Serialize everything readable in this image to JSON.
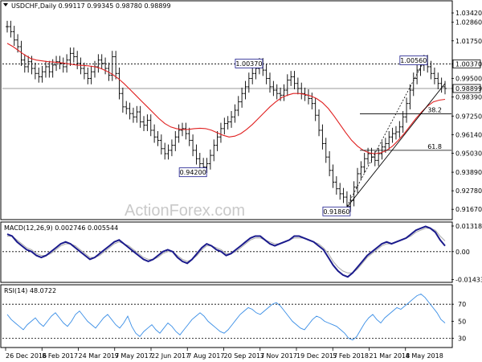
{
  "chart_data": [
    {
      "type": "line",
      "panel": "price",
      "title": "USDCHF,Daily  0.99117 0.99345 0.98780 0.98899",
      "ylim": [
        0.912,
        1.04
      ],
      "y_ticks": [
        1.0342,
        1.0286,
        1.0175,
        1.0037,
        0.995,
        0.98899,
        0.9839,
        0.9725,
        0.9614,
        0.9503,
        0.9389,
        0.9278,
        0.9167
      ],
      "highlight_ticks": [
        1.0037,
        0.98899
      ],
      "series": [
        {
          "kind": "ohlc-bars",
          "color": "#000000",
          "approx_closes": [
            1.026,
            1.023,
            1.018,
            1.014,
            1.006,
            1.002,
            1.005,
            1.001,
            0.998,
            0.996,
            0.999,
            1.002,
            0.999,
            1.003,
            1.005,
            1.004,
            1.002,
            1.006,
            1.01,
            1.008,
            1.004,
            1.001,
            0.998,
            0.995,
            0.999,
            1.002,
            1.006,
            1.004,
            1.001,
            0.997,
            1.008,
            0.998,
            0.986,
            0.978,
            0.977,
            0.974,
            0.972,
            0.975,
            0.969,
            0.967,
            0.97,
            0.964,
            0.96,
            0.958,
            0.953,
            0.95,
            0.952,
            0.955,
            0.96,
            0.964,
            0.965,
            0.962,
            0.958,
            0.952,
            0.947,
            0.944,
            0.942,
            0.944,
            0.949,
            0.955,
            0.96,
            0.965,
            0.968,
            0.969,
            0.972,
            0.976,
            0.981,
            0.986,
            0.99,
            0.995,
            0.998,
            1.001,
            1.0037,
            1.0,
            0.995,
            0.99,
            0.988,
            0.986,
            0.985,
            0.988,
            0.994,
            0.996,
            0.992,
            0.989,
            0.986,
            0.985,
            0.983,
            0.98,
            0.973,
            0.964,
            0.956,
            0.948,
            0.94,
            0.933,
            0.929,
            0.926,
            0.924,
            0.9186,
            0.922,
            0.93,
            0.938,
            0.942,
            0.947,
            0.95,
            0.948,
            0.946,
            0.95,
            0.954,
            0.956,
            0.96,
            0.962,
            0.963,
            0.966,
            0.972,
            0.98,
            0.988,
            0.995,
            1.0,
            1.003,
            1.0056,
            1.002,
            0.998,
            0.995,
            0.992,
            0.99,
            0.989
          ]
        },
        {
          "kind": "moving-average",
          "color": "#e02020",
          "approx_values": [
            1.016,
            1.014,
            1.0115,
            1.009,
            1.007,
            1.006,
            1.0055,
            1.005,
            1.0048,
            1.0045,
            1.004,
            1.0035,
            1.003,
            1.0028,
            1.0025,
            1.002,
            1.001,
            0.9995,
            0.9975,
            0.995,
            0.992,
            0.9885,
            0.985,
            0.9815,
            0.978,
            0.9745,
            0.971,
            0.968,
            0.966,
            0.965,
            0.9645,
            0.9645,
            0.965,
            0.9652,
            0.965,
            0.964,
            0.9625,
            0.961,
            0.96,
            0.9605,
            0.962,
            0.9645,
            0.9675,
            0.971,
            0.9745,
            0.978,
            0.981,
            0.9835,
            0.985,
            0.986,
            0.986,
            0.9855,
            0.9845,
            0.983,
            0.9805,
            0.977,
            0.9725,
            0.9675,
            0.9625,
            0.958,
            0.9545,
            0.952,
            0.9505,
            0.95,
            0.9505,
            0.952,
            0.9545,
            0.958,
            0.962,
            0.9665,
            0.971,
            0.975,
            0.9785,
            0.981,
            0.982,
            0.9825
          ]
        }
      ],
      "annotations": [
        {
          "text": "1.00370",
          "kind": "swing-high"
        },
        {
          "text": "0.94200",
          "kind": "swing-low"
        },
        {
          "text": "0.91860",
          "kind": "swing-low"
        },
        {
          "text": "1.00560",
          "kind": "swing-high"
        },
        {
          "text": "38.2",
          "kind": "fibonacci",
          "level": 0.9738
        },
        {
          "text": "61.8",
          "kind": "fibonacci",
          "level": 0.952
        }
      ],
      "reference_lines": [
        1.0037,
        0.98899
      ],
      "watermark": "ActionForex.com",
      "grid": false
    },
    {
      "type": "line",
      "panel": "macd",
      "title": "MACD(12,26,9) 0.002746 0.005544",
      "ylim": [
        -0.015,
        0.014
      ],
      "y_ticks": [
        0.013184,
        0.0,
        -0.014339
      ],
      "series": [
        {
          "kind": "macd",
          "color": "#1a1a8c",
          "approx_values": [
            0.009,
            0.008,
            0.005,
            0.003,
            0.001,
            0.0,
            -0.002,
            -0.003,
            -0.002,
            0.0,
            0.002,
            0.004,
            0.005,
            0.004,
            0.002,
            0.0,
            -0.002,
            -0.004,
            -0.003,
            -0.001,
            0.001,
            0.003,
            0.005,
            0.006,
            0.004,
            0.002,
            0.0,
            -0.002,
            -0.004,
            -0.005,
            -0.004,
            -0.002,
            0.0,
            0.001,
            0.0,
            -0.003,
            -0.005,
            -0.006,
            -0.004,
            -0.001,
            0.002,
            0.004,
            0.003,
            0.001,
            0.0,
            -0.002,
            -0.001,
            0.001,
            0.003,
            0.005,
            0.007,
            0.008,
            0.008,
            0.006,
            0.004,
            0.003,
            0.004,
            0.005,
            0.006,
            0.008,
            0.008,
            0.007,
            0.006,
            0.005,
            0.003,
            0.001,
            -0.003,
            -0.007,
            -0.01,
            -0.012,
            -0.013,
            -0.011,
            -0.008,
            -0.005,
            -0.002,
            0.0,
            0.002,
            0.004,
            0.005,
            0.004,
            0.005,
            0.006,
            0.007,
            0.009,
            0.011,
            0.012,
            0.013,
            0.012,
            0.01,
            0.006,
            0.003
          ]
        },
        {
          "kind": "signal",
          "color": "#aaaaaa",
          "approx_values": [
            0.008,
            0.008,
            0.006,
            0.004,
            0.002,
            0.001,
            -0.001,
            -0.002,
            -0.002,
            -0.001,
            0.001,
            0.003,
            0.004,
            0.004,
            0.003,
            0.001,
            -0.001,
            -0.003,
            -0.003,
            -0.002,
            0.0,
            0.002,
            0.004,
            0.005,
            0.004,
            0.003,
            0.001,
            -0.001,
            -0.003,
            -0.004,
            -0.004,
            -0.003,
            -0.001,
            0.0,
            0.0,
            -0.002,
            -0.004,
            -0.005,
            -0.004,
            -0.002,
            0.001,
            0.003,
            0.003,
            0.002,
            0.001,
            -0.001,
            -0.001,
            0.0,
            0.002,
            0.004,
            0.006,
            0.007,
            0.007,
            0.006,
            0.005,
            0.004,
            0.004,
            0.005,
            0.006,
            0.007,
            0.007,
            0.007,
            0.006,
            0.005,
            0.004,
            0.002,
            -0.001,
            -0.005,
            -0.008,
            -0.01,
            -0.011,
            -0.011,
            -0.009,
            -0.006,
            -0.003,
            -0.001,
            0.001,
            0.003,
            0.004,
            0.004,
            0.005,
            0.006,
            0.007,
            0.008,
            0.01,
            0.011,
            0.012,
            0.012,
            0.011,
            0.008,
            0.0055
          ]
        }
      ]
    },
    {
      "type": "line",
      "panel": "rsi",
      "title": "RSI(14) 48.0722",
      "ylim": [
        22,
        90
      ],
      "y_ticks": [
        70,
        50,
        30
      ],
      "series": [
        {
          "kind": "rsi",
          "color": "#3a8ee6",
          "approx_values": [
            58,
            52,
            48,
            44,
            40,
            46,
            50,
            54,
            48,
            44,
            50,
            56,
            60,
            54,
            48,
            44,
            50,
            58,
            62,
            56,
            50,
            46,
            42,
            48,
            54,
            58,
            52,
            46,
            42,
            48,
            56,
            44,
            36,
            32,
            38,
            42,
            46,
            40,
            36,
            42,
            48,
            44,
            38,
            34,
            40,
            46,
            52,
            56,
            60,
            56,
            50,
            46,
            42,
            38,
            36,
            40,
            46,
            52,
            58,
            62,
            66,
            64,
            60,
            58,
            62,
            66,
            70,
            72,
            68,
            62,
            56,
            50,
            46,
            42,
            40,
            46,
            52,
            56,
            54,
            50,
            48,
            46,
            44,
            40,
            36,
            30,
            28,
            32,
            40,
            48,
            54,
            58,
            52,
            48,
            54,
            58,
            62,
            66,
            64,
            68,
            72,
            76,
            80,
            82,
            78,
            72,
            66,
            60,
            52,
            48
          ]
        }
      ]
    }
  ],
  "x_axis": {
    "tick_labels": [
      "26 Dec 2016",
      "8 Feb 2017",
      "24 Mar 2017",
      "9 May 2017",
      "22 Jun 2017",
      "7 Aug 2017",
      "20 Sep 2017",
      "3 Nov 2017",
      "19 Dec 2017",
      "5 Feb 2018",
      "21 Mar 2018",
      "4 May 2018"
    ]
  }
}
